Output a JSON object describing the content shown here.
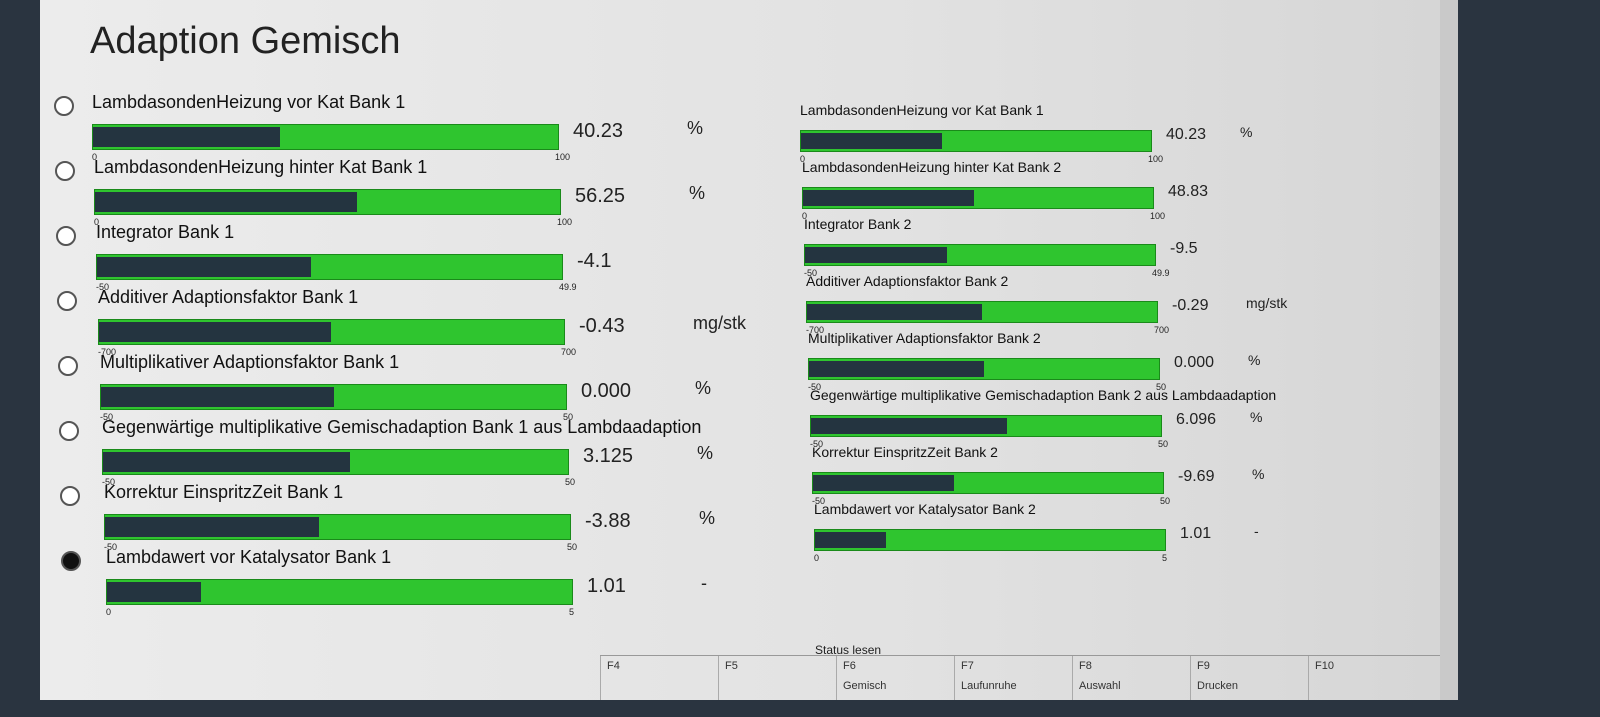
{
  "title": "Adaption Gemisch",
  "left": [
    {
      "label": "LambdasondenHeizung vor Kat Bank 1",
      "min": "0",
      "max": "100",
      "value": "40.23",
      "unit": "%"
    },
    {
      "label": "LambdasondenHeizung hinter Kat Bank 1",
      "min": "0",
      "max": "100",
      "value": "56.25",
      "unit": "%"
    },
    {
      "label": "Integrator Bank 1",
      "min": "-50",
      "max": "49.9",
      "value": "-4.1"
    },
    {
      "label": "Additiver Adaptionsfaktor Bank 1",
      "min": "-700",
      "max": "700",
      "value": "-0.43",
      "unit": "mg/stk"
    },
    {
      "label": "Multiplikativer Adaptionsfaktor Bank 1",
      "min": "-50",
      "max": "50",
      "value": "0.000",
      "unit": "%"
    },
    {
      "label": "Gegenwärtige multiplikative Gemischadaption Bank 1 aus Lambdaadaption",
      "min": "-50",
      "max": "50",
      "value": "3.125",
      "unit": "%"
    },
    {
      "label": "Korrektur EinspritzZeit Bank 1",
      "min": "-50",
      "max": "50",
      "value": "-3.88",
      "unit": "%"
    },
    {
      "label": "Lambdawert vor Katalysator Bank 1",
      "min": "0",
      "max": "5",
      "value": "1.01",
      "unit": "-",
      "selected": true
    }
  ],
  "right": [
    {
      "label": "LambdasondenHeizung vor Kat Bank 1",
      "min": "0",
      "max": "100",
      "value": "40.23",
      "unit": "%"
    },
    {
      "label": "LambdasondenHeizung hinter Kat Bank 2",
      "min": "0",
      "max": "100",
      "value": "48.83"
    },
    {
      "label": "Integrator Bank 2",
      "min": "-50",
      "max": "49.9",
      "value": "-9.5"
    },
    {
      "label": "Additiver Adaptionsfaktor Bank 2",
      "min": "-700",
      "max": "700",
      "value": "-0.29",
      "unit": "mg/stk"
    },
    {
      "label": "Multiplikativer Adaptionsfaktor Bank 2",
      "min": "-50",
      "max": "50",
      "value": "0.000",
      "unit": "%"
    },
    {
      "label": "Gegenwärtige multiplikative Gemischadaption Bank 2 aus Lambdaadaption",
      "min": "-50",
      "max": "50",
      "value": "6.096",
      "unit": "%"
    },
    {
      "label": "Korrektur EinspritzZeit Bank 2",
      "min": "-50",
      "max": "50",
      "value": "-9.69",
      "unit": "%"
    },
    {
      "label": "Lambdawert vor Katalysator Bank 2",
      "min": "0",
      "max": "5",
      "value": "1.01",
      "unit": "-"
    }
  ],
  "status": "Status lesen",
  "keys": [
    {
      "key": "F4"
    },
    {
      "key": "F5"
    },
    {
      "key": "F6",
      "label": "Gemisch"
    },
    {
      "key": "F7",
      "label": "Laufunruhe"
    },
    {
      "key": "F8",
      "label": "Auswahl"
    },
    {
      "key": "F9",
      "label": "Drucken"
    },
    {
      "key": "F10"
    }
  ]
}
